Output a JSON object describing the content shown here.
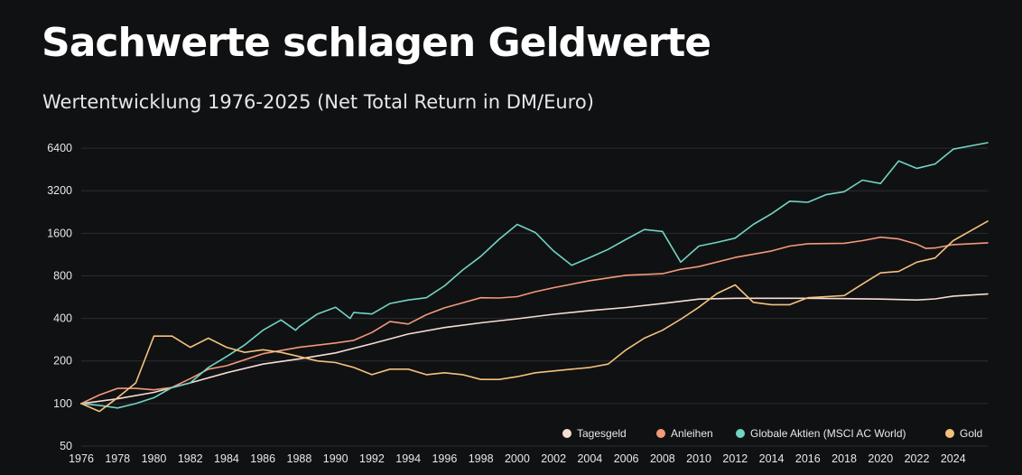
{
  "title": "Sachwerte schlagen Geldwerte",
  "subtitle": "Wertentwicklung 1976-2025 (Net Total Return in DM/Euro)",
  "chart_data": {
    "type": "line",
    "yscale": "log",
    "ylim": [
      50,
      7000
    ],
    "xlim": [
      1976,
      2025.9
    ],
    "yticks": [
      "50",
      "100",
      "200",
      "400",
      "800",
      "1600",
      "3200",
      "6400"
    ],
    "xticks": [
      "1976",
      "1978",
      "1980",
      "1982",
      "1984",
      "1986",
      "1988",
      "1990",
      "1992",
      "1994",
      "1996",
      "1998",
      "2000",
      "2002",
      "2004",
      "2006",
      "2008",
      "2010",
      "2012",
      "2014",
      "2016",
      "2018",
      "2020",
      "2022",
      "2024"
    ],
    "grid": true,
    "legend_position": "bottom-right",
    "series": [
      {
        "name": "Tagesgeld",
        "color": "#f6ddd4",
        "points": [
          [
            1976,
            100
          ],
          [
            1978,
            108
          ],
          [
            1980,
            120
          ],
          [
            1982,
            140
          ],
          [
            1984,
            165
          ],
          [
            1986,
            190
          ],
          [
            1988,
            207
          ],
          [
            1990,
            228
          ],
          [
            1992,
            265
          ],
          [
            1994,
            310
          ],
          [
            1996,
            345
          ],
          [
            1998,
            372
          ],
          [
            2000,
            398
          ],
          [
            2002,
            428
          ],
          [
            2004,
            455
          ],
          [
            2006,
            478
          ],
          [
            2008,
            510
          ],
          [
            2010,
            548
          ],
          [
            2012,
            555
          ],
          [
            2014,
            555
          ],
          [
            2016,
            555
          ],
          [
            2018,
            552
          ],
          [
            2020,
            548
          ],
          [
            2022,
            540
          ],
          [
            2023,
            550
          ],
          [
            2024,
            575
          ],
          [
            2025.9,
            595
          ]
        ]
      },
      {
        "name": "Anleihen",
        "color": "#f29a79",
        "points": [
          [
            1976,
            100
          ],
          [
            1977,
            115
          ],
          [
            1978,
            128
          ],
          [
            1979,
            128
          ],
          [
            1980,
            125
          ],
          [
            1981,
            130
          ],
          [
            1982,
            150
          ],
          [
            1983,
            175
          ],
          [
            1984,
            185
          ],
          [
            1986,
            225
          ],
          [
            1988,
            250
          ],
          [
            1990,
            268
          ],
          [
            1991,
            280
          ],
          [
            1992,
            318
          ],
          [
            1993,
            380
          ],
          [
            1994,
            365
          ],
          [
            1995,
            425
          ],
          [
            1996,
            475
          ],
          [
            1998,
            560
          ],
          [
            1999,
            558
          ],
          [
            2000,
            570
          ],
          [
            2001,
            618
          ],
          [
            2002,
            660
          ],
          [
            2004,
            740
          ],
          [
            2006,
            808
          ],
          [
            2008,
            828
          ],
          [
            2009,
            890
          ],
          [
            2010,
            930
          ],
          [
            2012,
            1080
          ],
          [
            2014,
            1200
          ],
          [
            2015,
            1300
          ],
          [
            2016,
            1350
          ],
          [
            2018,
            1360
          ],
          [
            2019,
            1420
          ],
          [
            2020,
            1500
          ],
          [
            2021,
            1460
          ],
          [
            2022,
            1340
          ],
          [
            2022.5,
            1250
          ],
          [
            2023,
            1260
          ],
          [
            2024,
            1330
          ],
          [
            2025.9,
            1370
          ]
        ]
      },
      {
        "name": "Globale Aktien (MSCI AC World)",
        "color": "#72d4c3",
        "points": [
          [
            1976,
            100
          ],
          [
            1977,
            97
          ],
          [
            1978,
            93
          ],
          [
            1979,
            100
          ],
          [
            1980,
            110
          ],
          [
            1981,
            130
          ],
          [
            1982,
            140
          ],
          [
            1983,
            180
          ],
          [
            1984,
            215
          ],
          [
            1985,
            260
          ],
          [
            1986,
            330
          ],
          [
            1987,
            390
          ],
          [
            1987.8,
            330
          ],
          [
            1988,
            350
          ],
          [
            1989,
            430
          ],
          [
            1990,
            480
          ],
          [
            1990.8,
            400
          ],
          [
            1991,
            440
          ],
          [
            1992,
            430
          ],
          [
            1993,
            510
          ],
          [
            1994,
            540
          ],
          [
            1995,
            560
          ],
          [
            1996,
            680
          ],
          [
            1997,
            880
          ],
          [
            1998,
            1100
          ],
          [
            1999,
            1450
          ],
          [
            2000,
            1850
          ],
          [
            2001,
            1620
          ],
          [
            2002,
            1200
          ],
          [
            2003,
            950
          ],
          [
            2004,
            1080
          ],
          [
            2005,
            1230
          ],
          [
            2006,
            1450
          ],
          [
            2007,
            1700
          ],
          [
            2008,
            1650
          ],
          [
            2009,
            1000
          ],
          [
            2010,
            1300
          ],
          [
            2011,
            1380
          ],
          [
            2012,
            1480
          ],
          [
            2013,
            1850
          ],
          [
            2014,
            2200
          ],
          [
            2015,
            2700
          ],
          [
            2016,
            2650
          ],
          [
            2017,
            3000
          ],
          [
            2018,
            3150
          ],
          [
            2019,
            3800
          ],
          [
            2020,
            3600
          ],
          [
            2021,
            5200
          ],
          [
            2022,
            4600
          ],
          [
            2023,
            4950
          ],
          [
            2024,
            6300
          ],
          [
            2025.9,
            7000
          ]
        ]
      },
      {
        "name": "Gold",
        "color": "#f5c27d",
        "points": [
          [
            1976,
            100
          ],
          [
            1977,
            88
          ],
          [
            1978,
            110
          ],
          [
            1979,
            140
          ],
          [
            1980,
            300
          ],
          [
            1981,
            300
          ],
          [
            1982,
            250
          ],
          [
            1983,
            290
          ],
          [
            1984,
            250
          ],
          [
            1985,
            230
          ],
          [
            1986,
            240
          ],
          [
            1987,
            230
          ],
          [
            1988,
            215
          ],
          [
            1989,
            200
          ],
          [
            1990,
            195
          ],
          [
            1991,
            180
          ],
          [
            1992,
            160
          ],
          [
            1993,
            175
          ],
          [
            1994,
            175
          ],
          [
            1995,
            160
          ],
          [
            1996,
            165
          ],
          [
            1997,
            160
          ],
          [
            1998,
            148
          ],
          [
            1999,
            148
          ],
          [
            2000,
            155
          ],
          [
            2001,
            165
          ],
          [
            2002,
            170
          ],
          [
            2003,
            175
          ],
          [
            2004,
            180
          ],
          [
            2005,
            190
          ],
          [
            2006,
            240
          ],
          [
            2007,
            290
          ],
          [
            2008,
            330
          ],
          [
            2009,
            395
          ],
          [
            2010,
            480
          ],
          [
            2011,
            600
          ],
          [
            2012,
            690
          ],
          [
            2013,
            520
          ],
          [
            2014,
            500
          ],
          [
            2015,
            500
          ],
          [
            2016,
            560
          ],
          [
            2017,
            570
          ],
          [
            2018,
            580
          ],
          [
            2019,
            700
          ],
          [
            2020,
            840
          ],
          [
            2021,
            860
          ],
          [
            2022,
            1000
          ],
          [
            2023,
            1070
          ],
          [
            2024,
            1420
          ],
          [
            2025.9,
            1950
          ]
        ]
      }
    ]
  }
}
